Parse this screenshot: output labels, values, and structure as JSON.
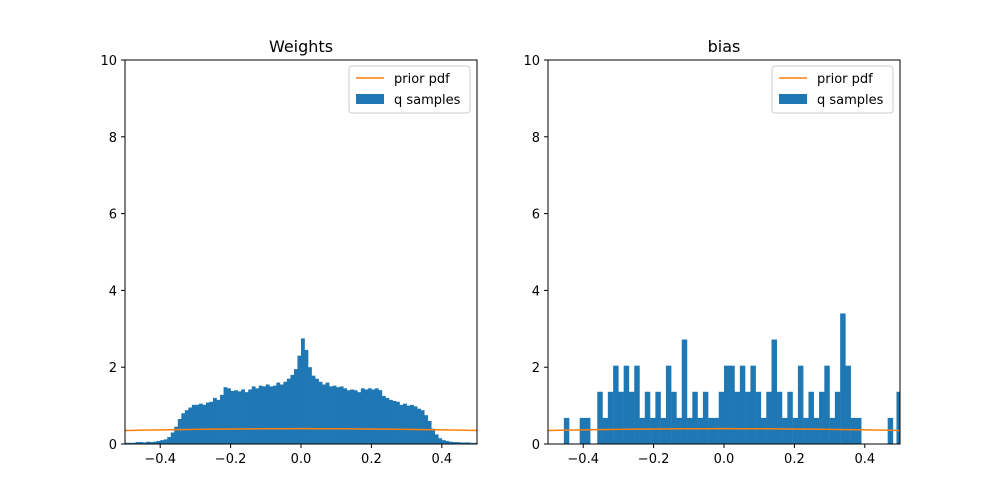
{
  "chart_data": [
    {
      "type": "bar",
      "title": "Weights",
      "xlabel": "",
      "ylabel": "",
      "xlim": [
        -0.5,
        0.5
      ],
      "ylim": [
        0,
        10
      ],
      "xticks": [
        "−0.4",
        "−0.2",
        "0.0",
        "0.2",
        "0.4"
      ],
      "xtick_values": [
        -0.4,
        -0.2,
        0.0,
        0.2,
        0.4
      ],
      "yticks": [
        "0",
        "2",
        "4",
        "6",
        "8",
        "10"
      ],
      "ytick_values": [
        0,
        2,
        4,
        6,
        8,
        10
      ],
      "grid": false,
      "legend_placement": "top-right",
      "bin_width": 0.01,
      "series": [
        {
          "name": "q samples",
          "kind": "histogram",
          "color": "#1f77b4",
          "bins": [
            [
              -0.5,
              0.03
            ],
            [
              -0.49,
              0.03
            ],
            [
              -0.48,
              0.03
            ],
            [
              -0.47,
              0.05
            ],
            [
              -0.46,
              0.05
            ],
            [
              -0.45,
              0.04
            ],
            [
              -0.44,
              0.06
            ],
            [
              -0.43,
              0.05
            ],
            [
              -0.42,
              0.06
            ],
            [
              -0.41,
              0.08
            ],
            [
              -0.4,
              0.1
            ],
            [
              -0.39,
              0.12
            ],
            [
              -0.38,
              0.18
            ],
            [
              -0.37,
              0.3
            ],
            [
              -0.36,
              0.45
            ],
            [
              -0.35,
              0.65
            ],
            [
              -0.34,
              0.8
            ],
            [
              -0.33,
              0.88
            ],
            [
              -0.32,
              0.95
            ],
            [
              -0.31,
              1.02
            ],
            [
              -0.3,
              1.02
            ],
            [
              -0.29,
              1.05
            ],
            [
              -0.28,
              1.02
            ],
            [
              -0.27,
              1.08
            ],
            [
              -0.26,
              1.1
            ],
            [
              -0.25,
              1.2
            ],
            [
              -0.24,
              1.15
            ],
            [
              -0.23,
              1.28
            ],
            [
              -0.22,
              1.48
            ],
            [
              -0.21,
              1.45
            ],
            [
              -0.2,
              1.38
            ],
            [
              -0.19,
              1.4
            ],
            [
              -0.18,
              1.37
            ],
            [
              -0.17,
              1.42
            ],
            [
              -0.16,
              1.35
            ],
            [
              -0.15,
              1.42
            ],
            [
              -0.14,
              1.5
            ],
            [
              -0.13,
              1.45
            ],
            [
              -0.12,
              1.52
            ],
            [
              -0.11,
              1.5
            ],
            [
              -0.1,
              1.55
            ],
            [
              -0.09,
              1.5
            ],
            [
              -0.08,
              1.52
            ],
            [
              -0.07,
              1.6
            ],
            [
              -0.06,
              1.55
            ],
            [
              -0.05,
              1.62
            ],
            [
              -0.04,
              1.7
            ],
            [
              -0.03,
              1.8
            ],
            [
              -0.02,
              1.95
            ],
            [
              -0.01,
              2.3
            ],
            [
              0.0,
              2.75
            ],
            [
              0.01,
              2.45
            ],
            [
              0.02,
              2.0
            ],
            [
              0.03,
              1.78
            ],
            [
              0.04,
              1.7
            ],
            [
              0.05,
              1.62
            ],
            [
              0.06,
              1.55
            ],
            [
              0.07,
              1.6
            ],
            [
              0.08,
              1.5
            ],
            [
              0.09,
              1.52
            ],
            [
              0.1,
              1.48
            ],
            [
              0.11,
              1.5
            ],
            [
              0.12,
              1.45
            ],
            [
              0.13,
              1.4
            ],
            [
              0.14,
              1.42
            ],
            [
              0.15,
              1.4
            ],
            [
              0.16,
              1.35
            ],
            [
              0.17,
              1.45
            ],
            [
              0.18,
              1.42
            ],
            [
              0.19,
              1.45
            ],
            [
              0.2,
              1.42
            ],
            [
              0.21,
              1.45
            ],
            [
              0.22,
              1.4
            ],
            [
              0.23,
              1.25
            ],
            [
              0.24,
              1.2
            ],
            [
              0.25,
              1.15
            ],
            [
              0.26,
              1.12
            ],
            [
              0.27,
              1.1
            ],
            [
              0.28,
              1.02
            ],
            [
              0.29,
              1.05
            ],
            [
              0.3,
              1.0
            ],
            [
              0.31,
              1.02
            ],
            [
              0.32,
              0.98
            ],
            [
              0.33,
              0.92
            ],
            [
              0.34,
              0.88
            ],
            [
              0.35,
              0.75
            ],
            [
              0.36,
              0.6
            ],
            [
              0.37,
              0.4
            ],
            [
              0.38,
              0.25
            ],
            [
              0.39,
              0.15
            ],
            [
              0.4,
              0.1
            ],
            [
              0.41,
              0.08
            ],
            [
              0.42,
              0.06
            ],
            [
              0.43,
              0.05
            ],
            [
              0.44,
              0.05
            ],
            [
              0.45,
              0.04
            ],
            [
              0.46,
              0.04
            ],
            [
              0.47,
              0.04
            ],
            [
              0.48,
              0.03
            ],
            [
              0.49,
              0.03
            ]
          ]
        },
        {
          "name": "prior pdf",
          "kind": "line",
          "color": "#ff7f0e",
          "points": [
            [
              -0.5,
              0.352
            ],
            [
              -0.45,
              0.361
            ],
            [
              -0.4,
              0.368
            ],
            [
              -0.35,
              0.375
            ],
            [
              -0.3,
              0.381
            ],
            [
              -0.25,
              0.386
            ],
            [
              -0.2,
              0.391
            ],
            [
              -0.15,
              0.394
            ],
            [
              -0.1,
              0.397
            ],
            [
              -0.05,
              0.398
            ],
            [
              0.0,
              0.399
            ],
            [
              0.05,
              0.398
            ],
            [
              0.1,
              0.397
            ],
            [
              0.15,
              0.394
            ],
            [
              0.2,
              0.391
            ],
            [
              0.25,
              0.386
            ],
            [
              0.3,
              0.381
            ],
            [
              0.35,
              0.375
            ],
            [
              0.4,
              0.368
            ],
            [
              0.45,
              0.361
            ],
            [
              0.5,
              0.352
            ]
          ]
        }
      ]
    },
    {
      "type": "bar",
      "title": "bias",
      "xlabel": "",
      "ylabel": "",
      "xlim": [
        -0.5,
        0.5
      ],
      "ylim": [
        0,
        10
      ],
      "xticks": [
        "−0.4",
        "−0.2",
        "0.0",
        "0.2",
        "0.4"
      ],
      "xtick_values": [
        -0.4,
        -0.2,
        0.0,
        0.2,
        0.4
      ],
      "yticks": [
        "0",
        "2",
        "4",
        "6",
        "8",
        "10"
      ],
      "ytick_values": [
        0,
        2,
        4,
        6,
        8,
        10
      ],
      "grid": false,
      "legend_placement": "top-right",
      "bin_width": 0.0147,
      "series": [
        {
          "name": "q samples",
          "kind": "histogram",
          "color": "#1f77b4",
          "bins": [
            [
              -0.455,
              0.68
            ],
            [
              -0.41,
              0.68
            ],
            [
              -0.395,
              0.68
            ],
            [
              -0.36,
              1.36
            ],
            [
              -0.345,
              0.68
            ],
            [
              -0.33,
              1.36
            ],
            [
              -0.315,
              2.04
            ],
            [
              -0.3,
              1.36
            ],
            [
              -0.285,
              2.04
            ],
            [
              -0.27,
              1.36
            ],
            [
              -0.255,
              2.04
            ],
            [
              -0.24,
              0.68
            ],
            [
              -0.225,
              1.36
            ],
            [
              -0.21,
              0.68
            ],
            [
              -0.195,
              1.36
            ],
            [
              -0.18,
              0.68
            ],
            [
              -0.165,
              2.04
            ],
            [
              -0.15,
              1.36
            ],
            [
              -0.135,
              0.68
            ],
            [
              -0.12,
              2.72
            ],
            [
              -0.105,
              0.68
            ],
            [
              -0.09,
              1.36
            ],
            [
              -0.075,
              0.68
            ],
            [
              -0.06,
              1.36
            ],
            [
              -0.045,
              0.68
            ],
            [
              -0.03,
              0.68
            ],
            [
              -0.015,
              1.36
            ],
            [
              0.0,
              2.04
            ],
            [
              0.015,
              2.04
            ],
            [
              0.03,
              1.36
            ],
            [
              0.045,
              2.04
            ],
            [
              0.06,
              1.36
            ],
            [
              0.075,
              2.04
            ],
            [
              0.09,
              1.36
            ],
            [
              0.105,
              0.68
            ],
            [
              0.12,
              1.36
            ],
            [
              0.135,
              2.72
            ],
            [
              0.15,
              1.36
            ],
            [
              0.165,
              0.68
            ],
            [
              0.18,
              1.36
            ],
            [
              0.195,
              0.68
            ],
            [
              0.21,
              2.04
            ],
            [
              0.225,
              0.68
            ],
            [
              0.24,
              1.36
            ],
            [
              0.255,
              0.68
            ],
            [
              0.27,
              1.36
            ],
            [
              0.285,
              2.04
            ],
            [
              0.3,
              0.68
            ],
            [
              0.315,
              1.36
            ],
            [
              0.33,
              3.4
            ],
            [
              0.345,
              2.04
            ],
            [
              0.36,
              0.68
            ],
            [
              0.375,
              0.68
            ],
            [
              0.465,
              0.68
            ],
            [
              0.49,
              1.36
            ]
          ]
        },
        {
          "name": "prior pdf",
          "kind": "line",
          "color": "#ff7f0e",
          "points": [
            [
              -0.5,
              0.352
            ],
            [
              -0.45,
              0.361
            ],
            [
              -0.4,
              0.368
            ],
            [
              -0.35,
              0.375
            ],
            [
              -0.3,
              0.381
            ],
            [
              -0.25,
              0.386
            ],
            [
              -0.2,
              0.391
            ],
            [
              -0.15,
              0.394
            ],
            [
              -0.1,
              0.397
            ],
            [
              -0.05,
              0.398
            ],
            [
              0.0,
              0.399
            ],
            [
              0.05,
              0.398
            ],
            [
              0.1,
              0.397
            ],
            [
              0.15,
              0.394
            ],
            [
              0.2,
              0.391
            ],
            [
              0.25,
              0.386
            ],
            [
              0.3,
              0.381
            ],
            [
              0.35,
              0.375
            ],
            [
              0.4,
              0.368
            ],
            [
              0.45,
              0.361
            ],
            [
              0.5,
              0.352
            ]
          ]
        }
      ]
    }
  ]
}
